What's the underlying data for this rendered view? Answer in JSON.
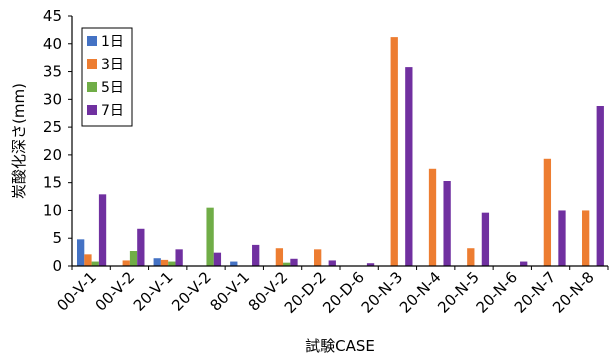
{
  "chart_data": {
    "type": "bar",
    "xlabel": "試験CASE",
    "ylabel": "炭酸化深さ(mm)",
    "ylim": [
      0,
      45
    ],
    "yticks": [
      0,
      5,
      10,
      15,
      20,
      25,
      30,
      35,
      40,
      45
    ],
    "grid": false,
    "legend_position": "top-left",
    "categories": [
      "00-V-1",
      "00-V-2",
      "20-V-1",
      "20-V-2",
      "80-V-1",
      "80-V-2",
      "20-D-2",
      "20-D-6",
      "20-N-3",
      "20-N-4",
      "20-N-5",
      "20-N-6",
      "20-N-7",
      "20-N-8"
    ],
    "series": [
      {
        "name": "1日",
        "color": "#4472c4",
        "values": [
          4.8,
          0,
          1.4,
          0,
          0.8,
          0,
          0,
          0,
          0,
          0,
          0,
          0,
          0,
          0
        ]
      },
      {
        "name": "3日",
        "color": "#ed7d31",
        "values": [
          2.1,
          1.0,
          1.1,
          0,
          0,
          3.2,
          3.0,
          0,
          41.2,
          17.5,
          3.2,
          0,
          19.3,
          10.0
        ]
      },
      {
        "name": "5日",
        "color": "#70ad47",
        "values": [
          0.8,
          2.7,
          0.8,
          10.5,
          0,
          0.6,
          0,
          0,
          0,
          0,
          0,
          0,
          0,
          0
        ]
      },
      {
        "name": "7日",
        "color": "#7030a0",
        "values": [
          12.9,
          6.7,
          3.0,
          2.4,
          3.8,
          1.3,
          1.0,
          0.5,
          35.8,
          15.3,
          9.6,
          0.8,
          10.0,
          28.8
        ]
      }
    ]
  }
}
